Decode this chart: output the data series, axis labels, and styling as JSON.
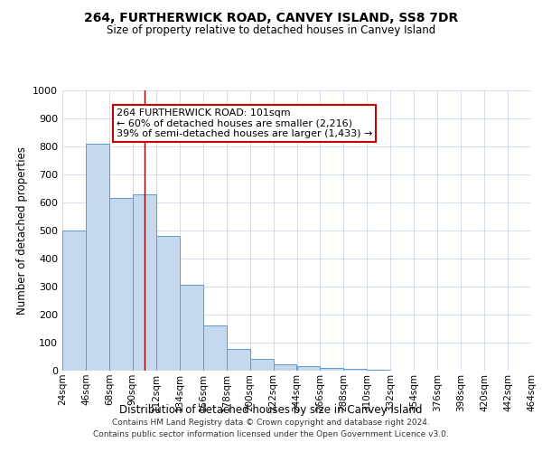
{
  "title": "264, FURTHERWICK ROAD, CANVEY ISLAND, SS8 7DR",
  "subtitle": "Size of property relative to detached houses in Canvey Island",
  "xlabel": "Distribution of detached houses by size in Canvey Island",
  "ylabel": "Number of detached properties",
  "footer_line1": "Contains HM Land Registry data © Crown copyright and database right 2024.",
  "footer_line2": "Contains public sector information licensed under the Open Government Licence v3.0.",
  "bin_edges": [
    24,
    46,
    68,
    90,
    112,
    134,
    156,
    178,
    200,
    222,
    244,
    266,
    288,
    310,
    332,
    354,
    376,
    398,
    420,
    442,
    464
  ],
  "bin_labels": [
    "24sqm",
    "46sqm",
    "68sqm",
    "90sqm",
    "112sqm",
    "134sqm",
    "156sqm",
    "178sqm",
    "200sqm",
    "222sqm",
    "244sqm",
    "266sqm",
    "288sqm",
    "310sqm",
    "332sqm",
    "354sqm",
    "376sqm",
    "398sqm",
    "420sqm",
    "442sqm",
    "464sqm"
  ],
  "bar_color": "#c5d8ed",
  "bar_edge_color": "#5b9bd5",
  "vline_x": 101,
  "vline_color": "#8b0000",
  "annotation_text": "264 FURTHERWICK ROAD: 101sqm\n← 60% of detached houses are smaller (2,216)\n39% of semi-detached houses are larger (1,433) →",
  "annotation_box_color": "#ffffff",
  "annotation_box_edge": "#cc0000",
  "ylim": [
    0,
    1000
  ],
  "yticks": [
    0,
    100,
    200,
    300,
    400,
    500,
    600,
    700,
    800,
    900,
    1000
  ],
  "bar_heights": [
    500,
    810,
    615,
    630,
    480,
    308,
    160,
    78,
    42,
    22,
    15,
    10,
    5,
    2,
    1,
    1,
    0,
    0,
    0,
    0
  ],
  "background_color": "#ffffff",
  "grid_color": "#ccd8ea"
}
